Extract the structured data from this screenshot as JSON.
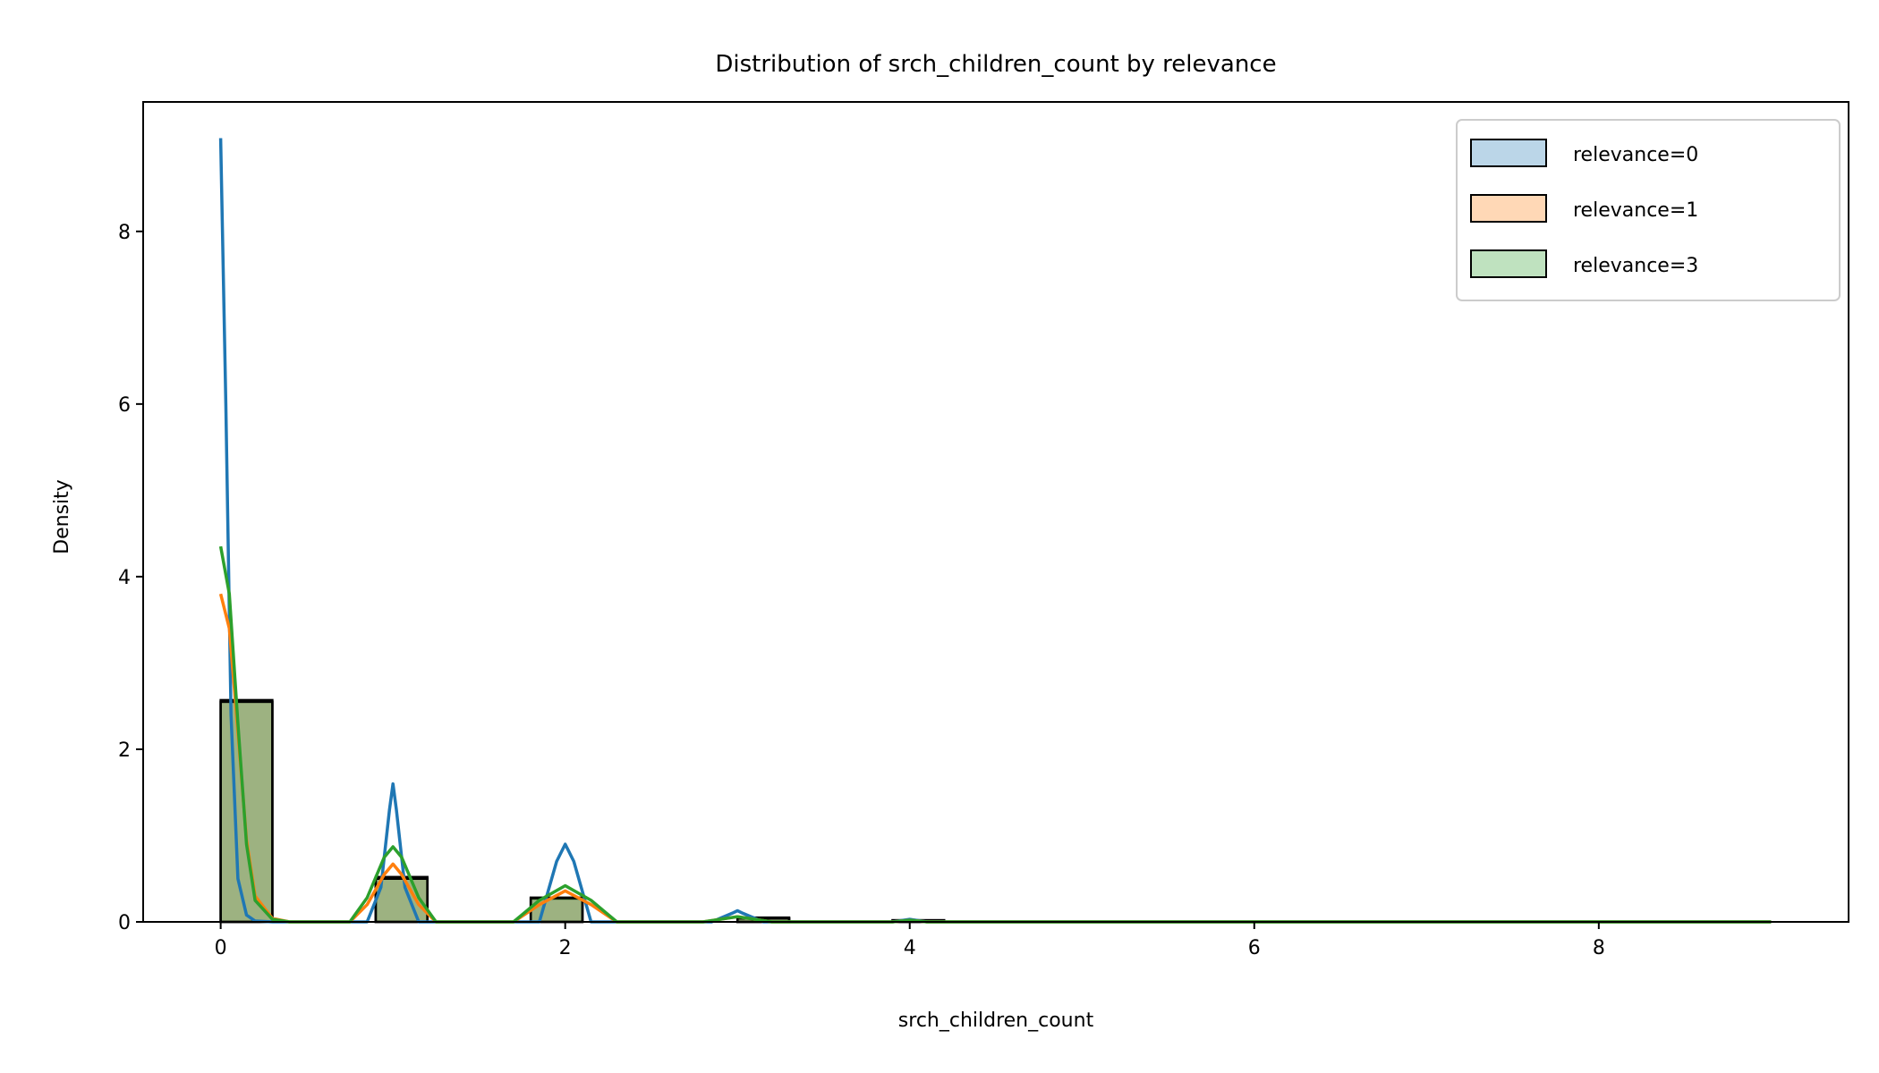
{
  "chart_data": {
    "type": "histogram",
    "title": "Distribution of srch_children_count by relevance",
    "xlabel": "srch_children_count",
    "ylabel": "Density",
    "xlim": [
      -0.45,
      9.45
    ],
    "ylim": [
      0,
      9.5
    ],
    "xticks": [
      0,
      2,
      4,
      6,
      8
    ],
    "yticks": [
      0,
      2,
      4,
      6,
      8
    ],
    "grid": false,
    "legend_position": "top-right",
    "bin_width": 0.3,
    "series": [
      {
        "name": "relevance=0",
        "color": "#1f77b4",
        "bins": [
          {
            "start": 0.0,
            "height": 2.57
          },
          {
            "start": 0.9,
            "height": 0.5
          },
          {
            "start": 1.8,
            "height": 0.28
          },
          {
            "start": 3.0,
            "height": 0.05
          },
          {
            "start": 3.9,
            "height": 0.02
          }
        ],
        "kde": {
          "x": [
            0.0,
            0.03,
            0.06,
            0.1,
            0.15,
            0.2,
            0.3,
            0.85,
            0.93,
            0.98,
            1.0,
            1.02,
            1.07,
            1.15,
            1.85,
            1.95,
            2.0,
            2.05,
            2.15,
            2.85,
            2.97,
            3.0,
            3.03,
            3.15,
            3.9,
            4.0,
            4.1,
            9.0
          ],
          "y": [
            9.08,
            6.0,
            2.4,
            0.5,
            0.08,
            0.01,
            0.0,
            0.0,
            0.4,
            1.3,
            1.6,
            1.3,
            0.4,
            0.0,
            0.0,
            0.7,
            0.9,
            0.7,
            0.0,
            0.0,
            0.1,
            0.13,
            0.1,
            0.0,
            0.0,
            0.03,
            0.0,
            0.0
          ]
        }
      },
      {
        "name": "relevance=1",
        "color": "#ff7f0e",
        "bins": [
          {
            "start": 0.0,
            "height": 2.55
          },
          {
            "start": 0.9,
            "height": 0.52
          },
          {
            "start": 1.8,
            "height": 0.27
          },
          {
            "start": 3.0,
            "height": 0.04
          },
          {
            "start": 3.9,
            "height": 0.01
          }
        ],
        "kde": {
          "x": [
            0.0,
            0.05,
            0.1,
            0.15,
            0.2,
            0.3,
            0.4,
            0.75,
            0.85,
            0.95,
            1.0,
            1.05,
            1.15,
            1.25,
            1.7,
            1.85,
            2.0,
            2.15,
            2.3,
            2.8,
            3.0,
            3.2,
            3.9,
            4.0,
            4.1,
            9.0
          ],
          "y": [
            3.8,
            3.4,
            2.2,
            0.95,
            0.3,
            0.04,
            0.0,
            0.0,
            0.2,
            0.55,
            0.67,
            0.55,
            0.2,
            0.0,
            0.0,
            0.2,
            0.36,
            0.2,
            0.0,
            0.0,
            0.06,
            0.0,
            0.0,
            0.02,
            0.0,
            0.0
          ]
        }
      },
      {
        "name": "relevance=3",
        "color": "#2ca02c",
        "bins": [
          {
            "start": 0.0,
            "height": 2.55
          },
          {
            "start": 0.9,
            "height": 0.5
          },
          {
            "start": 1.8,
            "height": 0.28
          },
          {
            "start": 3.0,
            "height": 0.04
          },
          {
            "start": 3.9,
            "height": 0.01
          }
        ],
        "kde": {
          "x": [
            0.0,
            0.05,
            0.1,
            0.15,
            0.2,
            0.3,
            0.4,
            0.75,
            0.85,
            0.95,
            1.0,
            1.05,
            1.15,
            1.25,
            1.7,
            1.85,
            2.0,
            2.15,
            2.3,
            2.8,
            3.0,
            3.2,
            3.9,
            4.0,
            4.1,
            9.0
          ],
          "y": [
            4.35,
            3.8,
            2.3,
            0.9,
            0.25,
            0.03,
            0.0,
            0.0,
            0.28,
            0.75,
            0.87,
            0.75,
            0.28,
            0.0,
            0.0,
            0.25,
            0.42,
            0.25,
            0.0,
            0.0,
            0.06,
            0.0,
            0.0,
            0.02,
            0.0,
            0.0
          ]
        }
      }
    ]
  }
}
